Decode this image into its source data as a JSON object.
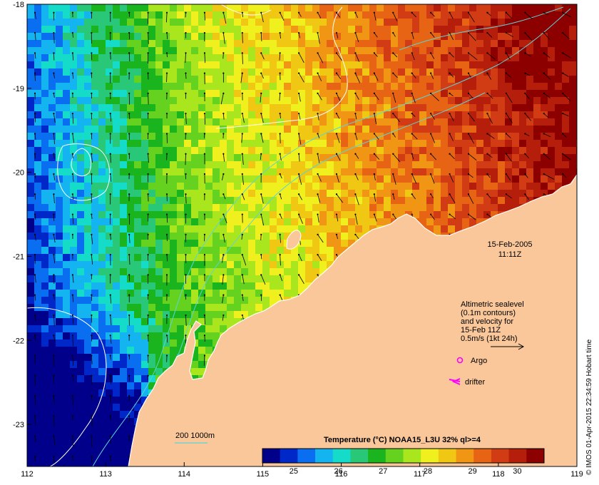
{
  "map": {
    "date": "15-Feb-2005",
    "time": "11:11Z",
    "credit": "© IMOS 01-Apr-2015 22:34:59 Hobart time",
    "lon_ticks": [
      "112",
      "113",
      "114",
      "115",
      "116",
      "117",
      "118",
      "119"
    ],
    "lat_ticks": [
      "-18",
      "-19",
      "-20",
      "-21",
      "-22",
      "-23"
    ],
    "lon_range": [
      112,
      119
    ],
    "lat_range": [
      -23.5,
      -18
    ],
    "colorbar": {
      "title": "Temperature (°C) NOAA15_L3U 32% ql>=4",
      "ticks": [
        "25",
        "26",
        "27",
        "28",
        "29",
        "30"
      ],
      "range": [
        24.3,
        30.6
      ],
      "colors": [
        "#00008a",
        "#0028c8",
        "#0a6ef0",
        "#14b4f0",
        "#14dcc8",
        "#28c878",
        "#1ab41e",
        "#64d21e",
        "#aae61e",
        "#f0f01e",
        "#f0c814",
        "#f09614",
        "#e66414",
        "#d23c14",
        "#b41e0a",
        "#8c0000"
      ]
    },
    "legend": {
      "altimetry_lines": [
        "Altimetric sealevel",
        "(0.1m contours)",
        "and velocity for",
        "15-Feb 11Z",
        "0.5m/s (1kt 24h)"
      ],
      "argo_label": "Argo",
      "drifter_label": "drifter",
      "isobath_label": "200  1000m"
    },
    "colors": {
      "land": "#f9c79a",
      "vector": "#000000",
      "contour": "#ffffff",
      "isobath": "#5fd3d3",
      "argo": "#ff00ff",
      "drifter": "#ff00ff",
      "frame": "#000000"
    }
  }
}
